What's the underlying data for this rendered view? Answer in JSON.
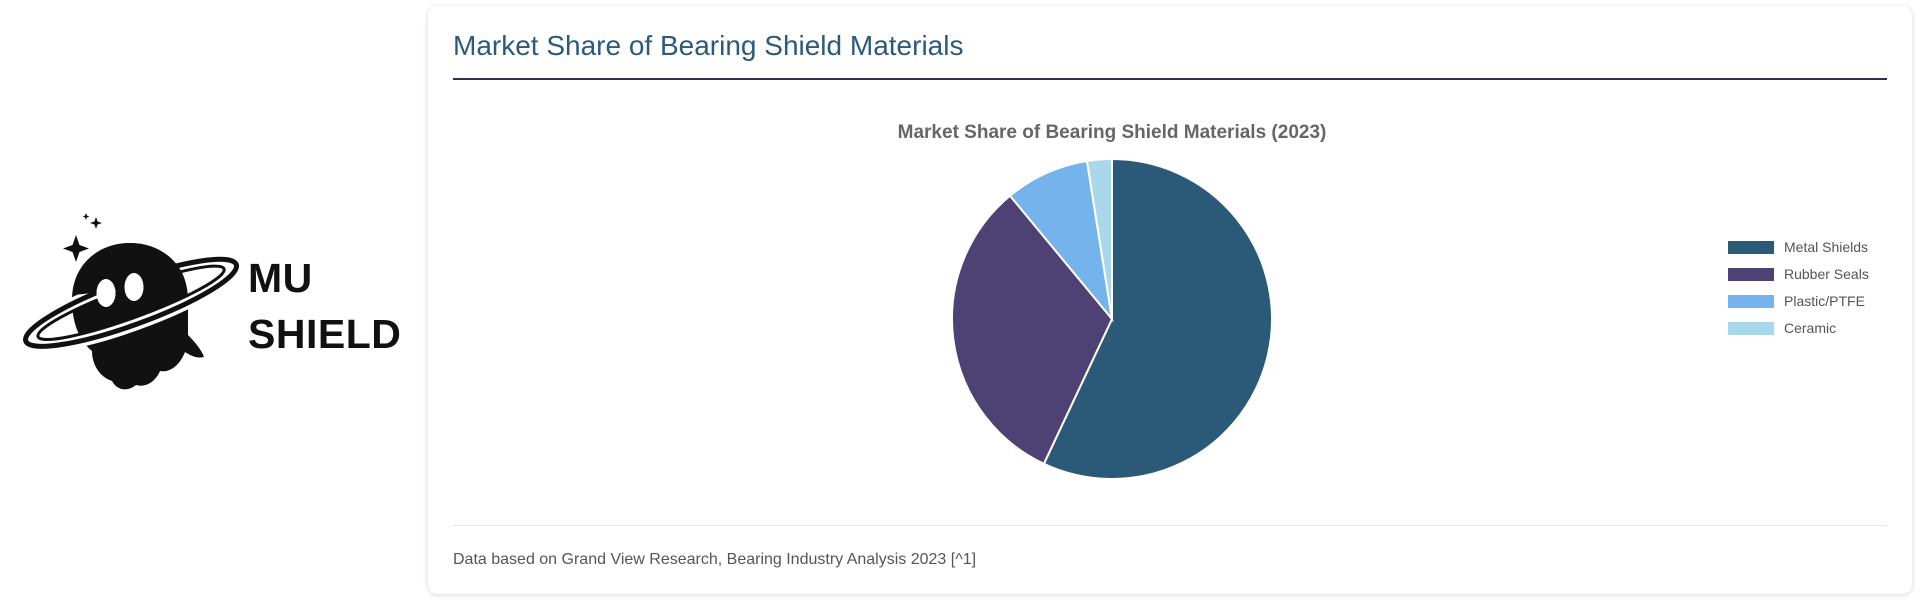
{
  "brand": {
    "line1": "MU",
    "line2": "SHIELD",
    "logo_icon": "ghost-planet-icon"
  },
  "card": {
    "title": "Market Share of Bearing Shield Materials",
    "footnote": "Data based on Grand View Research, Bearing Industry Analysis 2023 [^1]"
  },
  "colors": {
    "title": "#2b5a7c",
    "rule": "#2f2f55"
  },
  "chart_data": {
    "type": "pie",
    "title": "Market Share of Bearing Shield Materials (2023)",
    "categories": [
      "Metal Shields",
      "Rubber Seals",
      "Plastic/PTFE",
      "Ceramic"
    ],
    "values": [
      57,
      32,
      8.5,
      2.5
    ],
    "colors": [
      "#2b5a78",
      "#4e4275",
      "#74b3ec",
      "#a8d8ea"
    ],
    "legend_position": "right",
    "start_angle": "12 o'clock",
    "direction": "clockwise"
  }
}
